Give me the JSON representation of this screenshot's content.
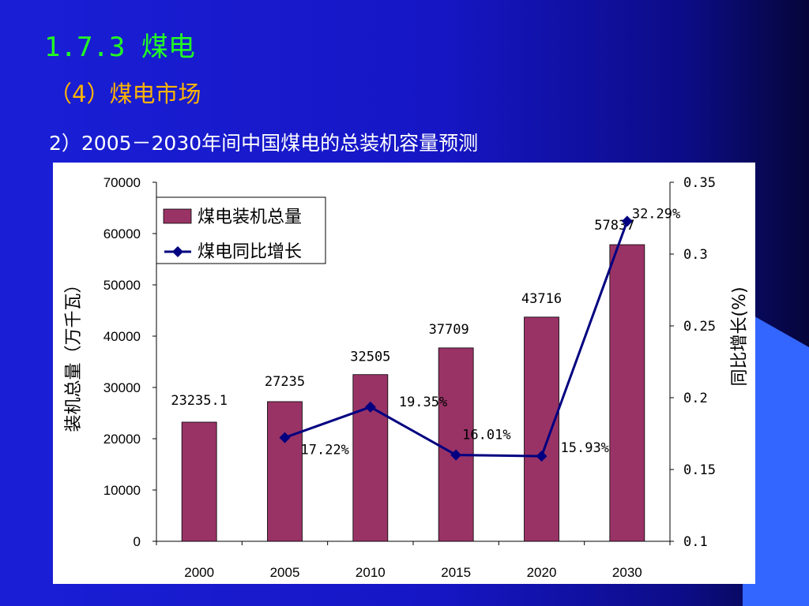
{
  "slide": {
    "section_title": "1.7.3 煤电",
    "subtitle": "（4）煤电市场",
    "caption": "2）2005－2030年间中国煤电的总装机容量预测"
  },
  "colors": {
    "background": "#1616c4",
    "title": "#22ff22",
    "subtitle": "#ffb400",
    "bar": "#993366",
    "line": "#000080",
    "accent_decoration": "#3366ff"
  },
  "chart_data": {
    "type": "bar",
    "categories": [
      "2000",
      "2005",
      "2010",
      "2015",
      "2020",
      "2030"
    ],
    "series": [
      {
        "name": "煤电装机总量",
        "type": "bar",
        "axis": "left",
        "values": [
          23235.1,
          27235,
          32505,
          37709,
          43716,
          57837
        ],
        "labels": [
          "23235.1",
          "27235",
          "32505",
          "37709",
          "43716",
          "57837"
        ]
      },
      {
        "name": "煤电同比增长",
        "type": "line",
        "axis": "right",
        "values": [
          null,
          0.1722,
          0.1935,
          0.1601,
          0.1593,
          0.3229
        ],
        "labels": [
          "",
          "17.22%",
          "19.35%",
          "16.01%",
          "15.93%",
          "32.29%"
        ]
      }
    ],
    "ylabel": "装机总量（万千瓦）",
    "ylabel_right": "同比增长(%)",
    "ylim": [
      0,
      70000
    ],
    "ylim_right": [
      0.1,
      0.35
    ],
    "yticks": [
      "0",
      "10000",
      "20000",
      "30000",
      "40000",
      "50000",
      "60000",
      "70000"
    ],
    "yticks_right": [
      "0.1",
      "0.15",
      "0.2",
      "0.25",
      "0.3",
      "0.35"
    ],
    "legend": "top-left",
    "grid": false
  }
}
